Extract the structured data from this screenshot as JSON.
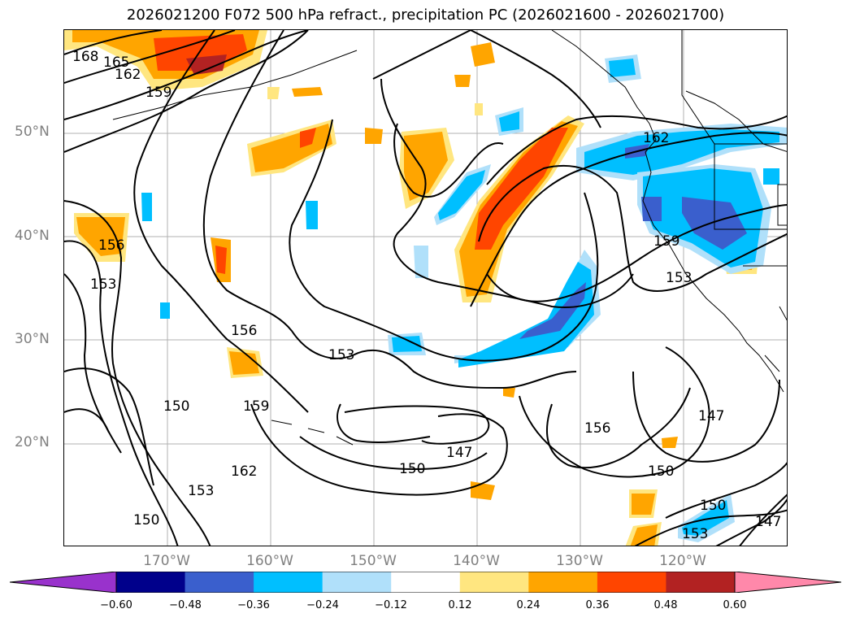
{
  "title": "2026021200 F072 500 hPa refract., precipitation PC (2026021600 - 2026021700)",
  "map": {
    "lat_labels": [
      "50°N",
      "40°N",
      "30°N",
      "20°N"
    ],
    "lon_labels": [
      "170°W",
      "160°W",
      "150°W",
      "140°W",
      "130°W",
      "120°W"
    ],
    "contour_labels": [
      "168",
      "165",
      "162",
      "159",
      "156",
      "153",
      "156",
      "153",
      "159",
      "150",
      "162",
      "153",
      "150",
      "150",
      "147",
      "156",
      "150",
      "162",
      "159",
      "153",
      "147",
      "150",
      "153",
      "147"
    ]
  },
  "colorbar": {
    "ticks": [
      "−0.60",
      "−0.48",
      "−0.36",
      "−0.24",
      "−0.12",
      "0.12",
      "0.24",
      "0.36",
      "0.48",
      "0.60"
    ],
    "colors": [
      "#9932cc",
      "#00008b",
      "#3a5fcd",
      "#00bfff",
      "#b0e0fa",
      "#ffffff",
      "#ffe680",
      "#ffa500",
      "#ff4500",
      "#b22222",
      "#ff88aa"
    ]
  }
}
